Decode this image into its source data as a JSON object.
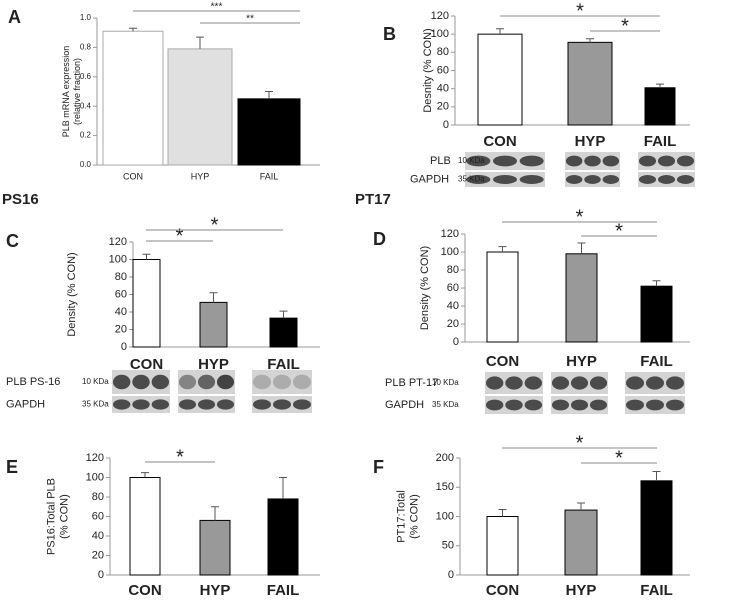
{
  "chart_data": [
    {
      "type": "bar",
      "label": "A",
      "ylabel": [
        "PLB mRNA expression",
        "(relative fraction)"
      ],
      "categories": [
        "CON",
        "HYP",
        "FAIL"
      ],
      "values": [
        0.91,
        0.79,
        0.45
      ],
      "errors": [
        0.02,
        0.08,
        0.05
      ],
      "colors": [
        "#ffffff",
        "#e0e0e0",
        "#000000"
      ],
      "ylim": [
        0,
        1
      ],
      "yticks": [
        {
          "value": 0,
          "label": "0.0"
        },
        0.2,
        0.4,
        0.6,
        0.8,
        {
          "value": 1,
          "label": "1.0"
        }
      ],
      "annotations": [
        "***",
        "**"
      ]
    },
    {
      "type": "bar",
      "label": "B",
      "ylabel": [
        "Desnity (% CON)"
      ],
      "categories": [
        "CON",
        "HYP",
        "FAIL"
      ],
      "values": [
        100,
        91,
        41
      ],
      "errors": [
        6,
        4,
        4
      ],
      "colors": [
        "#ffffff",
        "#999999",
        "#000000"
      ],
      "ylim": [
        0,
        120
      ],
      "yticks": [
        0,
        20,
        40,
        60,
        80,
        100,
        120
      ],
      "annotations": [
        "*",
        "*"
      ],
      "blot": [
        {
          "name": "PLB",
          "size": "10 KDa"
        },
        {
          "name": "GAPDH",
          "size": "35 KDa"
        }
      ]
    },
    {
      "type": "bar",
      "label": "C",
      "section": "PS16",
      "ylabel": [
        "Density (% CON)"
      ],
      "categories": [
        "CON",
        "HYP",
        "FAIL"
      ],
      "values": [
        100,
        51,
        33
      ],
      "errors": [
        6,
        11,
        8
      ],
      "colors": [
        "#ffffff",
        "#999999",
        "#000000"
      ],
      "ylim": [
        0,
        120
      ],
      "yticks": [
        0,
        20,
        40,
        60,
        80,
        100,
        120
      ],
      "annotations": [
        "*",
        "*"
      ],
      "blot": [
        {
          "name": "PLB  PS-16",
          "size": "10 KDa"
        },
        {
          "name": "GAPDH",
          "size": "35 KDa"
        }
      ]
    },
    {
      "type": "bar",
      "label": "D",
      "section": "PT17",
      "ylabel": [
        "Density (% CON)"
      ],
      "categories": [
        "CON",
        "HYP",
        "FAIL"
      ],
      "values": [
        100,
        98,
        62
      ],
      "errors": [
        6,
        12,
        6
      ],
      "colors": [
        "#ffffff",
        "#999999",
        "#000000"
      ],
      "ylim": [
        0,
        120
      ],
      "yticks": [
        0,
        20,
        40,
        60,
        80,
        100,
        120
      ],
      "annotations": [
        "*",
        "*"
      ],
      "blot": [
        {
          "name": "PLB PT-17",
          "size": "10 KDa"
        },
        {
          "name": "GAPDH",
          "size": "35 KDa"
        }
      ]
    },
    {
      "type": "bar",
      "label": "E",
      "ylabel": [
        "PS16:Total PLB",
        "(% CON)"
      ],
      "categories": [
        "CON",
        "HYP",
        "FAIL"
      ],
      "values": [
        100,
        56,
        78
      ],
      "errors": [
        5,
        14,
        22
      ],
      "colors": [
        "#ffffff",
        "#999999",
        "#000000"
      ],
      "ylim": [
        0,
        120
      ],
      "yticks": [
        0,
        20,
        40,
        60,
        80,
        100,
        120
      ],
      "annotations": [
        "*"
      ]
    },
    {
      "type": "bar",
      "label": "F",
      "ylabel": [
        "PT17:Total",
        "(% CON)"
      ],
      "categories": [
        "CON",
        "HYP",
        "FAIL"
      ],
      "values": [
        100,
        111,
        161
      ],
      "errors": [
        12,
        12,
        16
      ],
      "colors": [
        "#ffffff",
        "#999999",
        "#000000"
      ],
      "ylim": [
        0,
        200
      ],
      "yticks": [
        0,
        50,
        100,
        150,
        200
      ],
      "annotations": [
        "*",
        "*"
      ]
    }
  ]
}
